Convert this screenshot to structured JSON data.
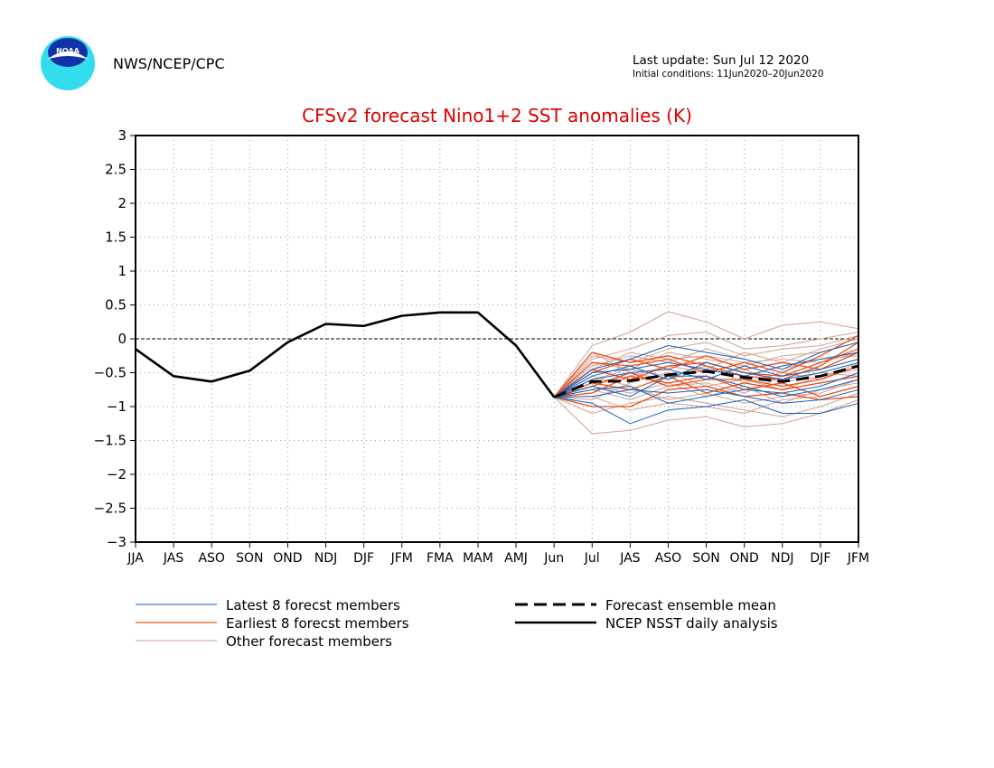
{
  "header": {
    "agency": "NWS/NCEP/CPC",
    "logo_text": "NOAA",
    "last_update": "Last update: Sun Jul 12 2020",
    "initial_conditions": "Initial conditions: 11Jun2020–20Jun2020"
  },
  "colors": {
    "title": "#dd0000",
    "latest": "#1560bd",
    "earliest": "#e8501c",
    "other": "#d4a090",
    "analysis": "#000000",
    "grid": "#999999",
    "logo_outer": "#33ddee",
    "logo_inner": "#1133aa"
  },
  "chart_data": {
    "type": "line",
    "title": "CFSv2 forecast Nino1+2 SST anomalies (K)",
    "xlabel": "",
    "ylabel": "",
    "ylim": [
      -3,
      3
    ],
    "yticks": [
      "3",
      "2.5",
      "2",
      "1.5",
      "1",
      "0.5",
      "0",
      "−0.5",
      "−1",
      "−1.5",
      "−2",
      "−2.5",
      "−3"
    ],
    "ytick_values": [
      3,
      2.5,
      2,
      1.5,
      1,
      0.5,
      0,
      -0.5,
      -1,
      -1.5,
      -2,
      -2.5,
      -3
    ],
    "categories": [
      "JJA",
      "JAS",
      "ASO",
      "SON",
      "OND",
      "NDJ",
      "DJF",
      "JFM",
      "FMA",
      "MAM",
      "AMJ",
      "Jun",
      "Jul",
      "JAS",
      "ASO",
      "SON",
      "OND",
      "NDJ",
      "DJF",
      "JFM"
    ],
    "grid": true,
    "legend": [
      {
        "label": "Latest 8 forecst members",
        "series": "latest",
        "style": "thin"
      },
      {
        "label": "Earliest 8 forecst members",
        "series": "earliest",
        "style": "thin"
      },
      {
        "label": "Other forecast members",
        "series": "other",
        "style": "thin"
      },
      {
        "label": "Forecast ensemble mean",
        "series": "mean",
        "style": "dashed"
      },
      {
        "label": "NCEP NSST daily analysis",
        "series": "analysis",
        "style": "thick"
      }
    ],
    "analysis": {
      "name": "NCEP NSST daily analysis",
      "values": [
        -0.15,
        -0.55,
        -0.63,
        -0.47,
        -0.05,
        0.22,
        0.19,
        0.34,
        0.39,
        0.39,
        -0.1,
        -0.86
      ]
    },
    "ensemble_mean": {
      "name": "Forecast ensemble mean",
      "start_index": 11,
      "values": [
        -0.86,
        -0.63,
        -0.62,
        -0.53,
        -0.48,
        -0.57,
        -0.63,
        -0.55,
        -0.4
      ]
    },
    "members_start_index": 11,
    "latest_members": [
      [
        -0.86,
        -0.95,
        -1.25,
        -1.05,
        -1.0,
        -0.9,
        -1.1,
        -1.1,
        -0.95
      ],
      [
        -0.86,
        -0.45,
        -0.3,
        -0.1,
        -0.2,
        -0.3,
        -0.45,
        -0.2,
        -0.05
      ],
      [
        -0.86,
        -0.7,
        -0.85,
        -0.55,
        -0.55,
        -0.7,
        -0.85,
        -0.75,
        -0.6
      ],
      [
        -0.86,
        -0.55,
        -0.4,
        -0.6,
        -0.35,
        -0.5,
        -0.6,
        -0.5,
        -0.35
      ],
      [
        -0.86,
        -0.85,
        -0.75,
        -0.8,
        -0.75,
        -0.85,
        -0.95,
        -0.9,
        -0.75
      ],
      [
        -0.86,
        -0.6,
        -0.5,
        -0.45,
        -0.6,
        -0.4,
        -0.55,
        -0.45,
        -0.3
      ],
      [
        -0.86,
        -0.75,
        -0.7,
        -0.95,
        -0.85,
        -0.75,
        -0.8,
        -0.7,
        -0.5
      ],
      [
        -0.86,
        -0.5,
        -0.45,
        -0.35,
        -0.45,
        -0.55,
        -0.4,
        -0.3,
        -0.2
      ]
    ],
    "earliest_members": [
      [
        -0.86,
        -0.2,
        -0.35,
        -0.25,
        -0.4,
        -0.55,
        -0.6,
        -0.4,
        -0.05
      ],
      [
        -0.86,
        -1.0,
        -1.0,
        -0.75,
        -0.7,
        -0.85,
        -0.8,
        -0.9,
        -0.85
      ],
      [
        -0.86,
        -0.5,
        -0.3,
        -0.45,
        -0.25,
        -0.45,
        -0.35,
        -0.45,
        -0.2
      ],
      [
        -0.86,
        -0.65,
        -0.75,
        -0.55,
        -0.8,
        -0.65,
        -0.75,
        -0.65,
        -0.55
      ],
      [
        -0.86,
        -0.35,
        -0.4,
        -0.3,
        -0.5,
        -0.35,
        -0.5,
        -0.25,
        0.05
      ],
      [
        -0.86,
        -0.8,
        -0.55,
        -0.65,
        -0.55,
        -0.75,
        -0.65,
        -0.85,
        -0.7
      ],
      [
        -0.86,
        -0.45,
        -0.6,
        -0.4,
        -0.35,
        -0.5,
        -0.55,
        -0.35,
        -0.15
      ],
      [
        -0.86,
        -0.7,
        -0.5,
        -0.7,
        -0.6,
        -0.6,
        -0.7,
        -0.6,
        -0.4
      ]
    ],
    "other_members": [
      [
        -0.86,
        -1.4,
        -1.35,
        -1.2,
        -1.15,
        -1.3,
        -1.25,
        -1.1,
        -0.9
      ],
      [
        -0.86,
        -0.1,
        0.1,
        0.4,
        0.25,
        0.0,
        0.2,
        0.25,
        0.15
      ],
      [
        -0.86,
        -0.3,
        -0.15,
        0.05,
        0.1,
        -0.15,
        -0.1,
        0.0,
        0.1
      ],
      [
        -0.86,
        -0.6,
        -0.45,
        -0.2,
        -0.3,
        -0.4,
        -0.25,
        -0.2,
        -0.05
      ],
      [
        -0.86,
        -1.1,
        -0.95,
        -0.85,
        -0.95,
        -1.05,
        -1.15,
        -1.0,
        -0.8
      ],
      [
        -0.86,
        -0.4,
        -0.25,
        -0.35,
        -0.15,
        -0.3,
        -0.45,
        -0.3,
        -0.25
      ],
      [
        -0.86,
        -0.75,
        -0.9,
        -0.7,
        -0.65,
        -0.8,
        -0.55,
        -0.45,
        -0.3
      ],
      [
        -0.86,
        -0.2,
        -0.5,
        -0.6,
        -0.45,
        -0.2,
        -0.35,
        -0.15,
        0.0
      ],
      [
        -0.86,
        -0.9,
        -0.65,
        -0.5,
        -0.7,
        -0.6,
        -0.75,
        -0.55,
        -0.45
      ],
      [
        -0.86,
        -0.55,
        -0.7,
        -0.9,
        -0.8,
        -0.95,
        -0.85,
        -0.8,
        -0.6
      ],
      [
        -0.86,
        -0.35,
        -0.45,
        -0.55,
        -0.4,
        -0.65,
        -0.5,
        -0.6,
        -0.35
      ],
      [
        -0.86,
        -0.65,
        -0.55,
        -0.4,
        -0.5,
        -0.45,
        -0.65,
        -0.5,
        -0.55
      ],
      [
        -0.86,
        -0.85,
        -1.05,
        -0.95,
        -1.0,
        -1.1,
        -0.9,
        -0.85,
        -0.7
      ],
      [
        -0.86,
        -0.25,
        -0.35,
        -0.15,
        -0.05,
        -0.25,
        -0.15,
        -0.1,
        0.05
      ],
      [
        -0.86,
        -0.7,
        -0.8,
        -0.65,
        -0.85,
        -0.7,
        -0.95,
        -0.75,
        -0.65
      ],
      [
        -0.86,
        -0.45,
        -0.2,
        -0.3,
        -0.25,
        -0.35,
        -0.3,
        -0.35,
        -0.2
      ]
    ]
  }
}
